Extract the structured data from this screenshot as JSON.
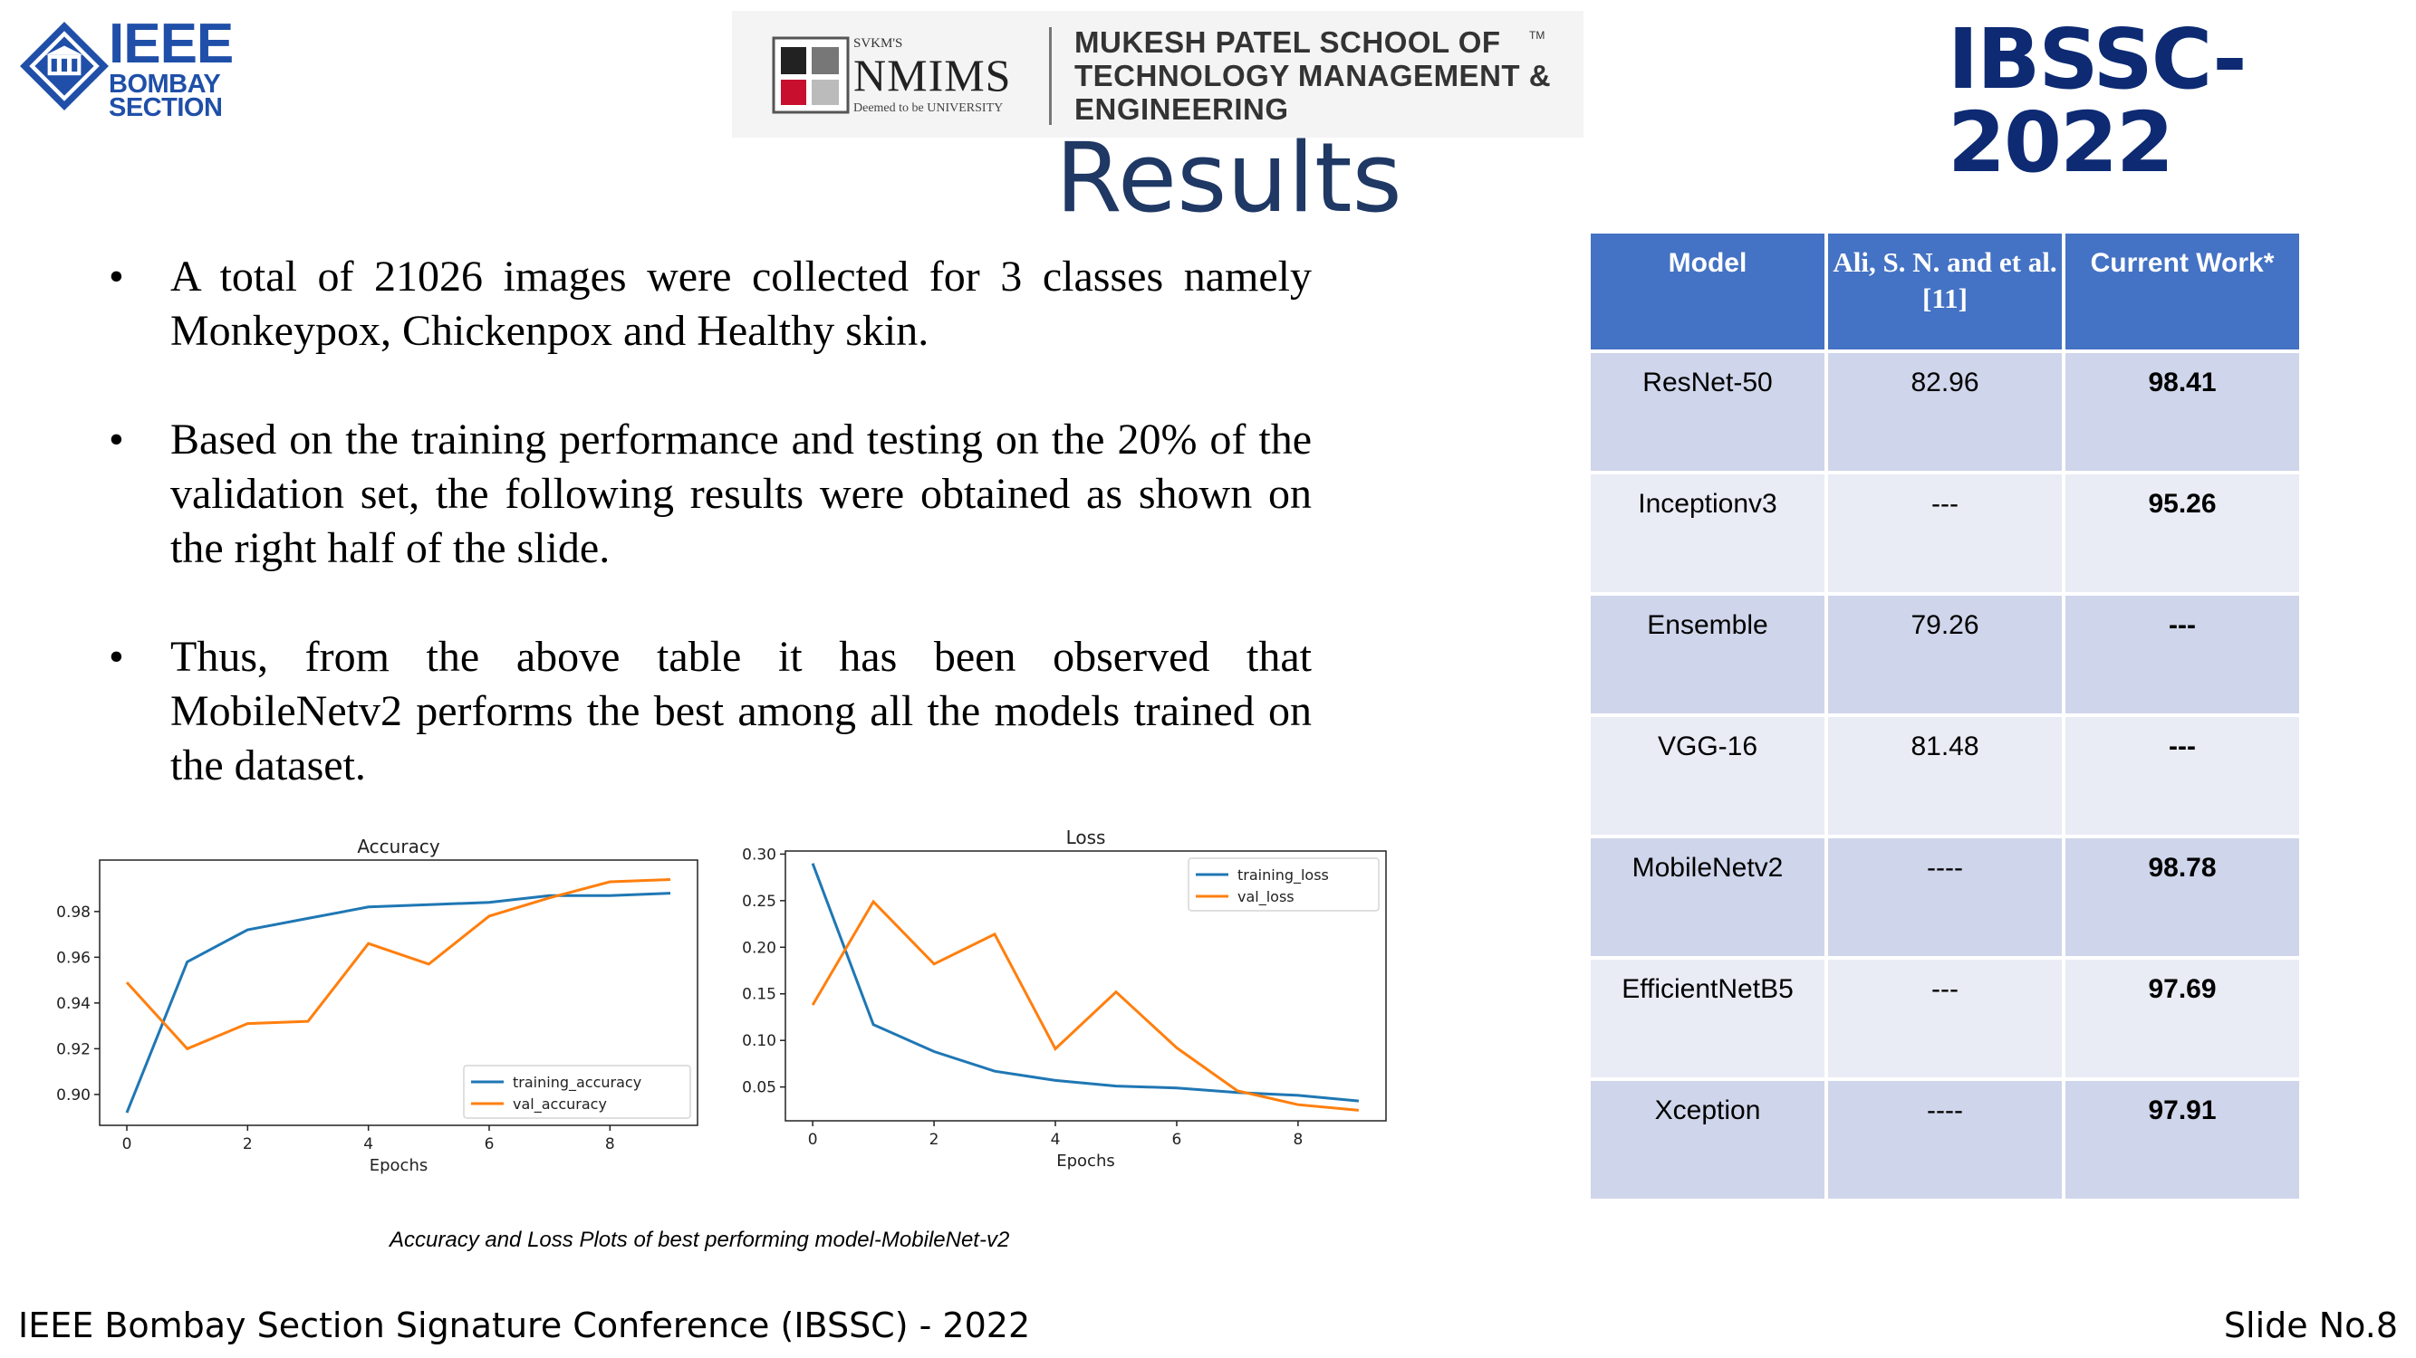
{
  "header": {
    "ieee_logo": {
      "line1": "IEEE",
      "line2": "BOMBAY",
      "line3": "SECTION"
    },
    "nmims_logo": {
      "svkms": "SVKM'S",
      "wordmark": "NMIMS",
      "deemed": "Deemed to be UNIVERSITY",
      "school_line1": "MUKESH PATEL SCHOOL OF",
      "school_line2": "TECHNOLOGY MANAGEMENT &",
      "school_line3": "ENGINEERING",
      "tm": "TM"
    },
    "conference_logo": "IBSSC-2022"
  },
  "title": "Results",
  "bullets": [
    "A total of 21026 images were collected for 3 classes namely Monkeypox, Chickenpox and Healthy skin.",
    "Based on the training performance and testing on the 20% of the validation set, the following results were obtained as shown on the right half of the slide.",
    "Thus, from the above table it has been observed that MobileNetv2 performs the best among all the models trained on the dataset."
  ],
  "bullet_symbol": "•",
  "caption": "Accuracy and Loss Plots of best performing model-MobileNet-v2",
  "chart_data": [
    {
      "type": "line",
      "title": "Accuracy",
      "xlabel": "Epochs",
      "ylabel": "",
      "x": [
        0,
        1,
        2,
        3,
        4,
        5,
        6,
        7,
        8,
        9
      ],
      "xticks": [
        "0",
        "2",
        "4",
        "6",
        "8"
      ],
      "yticks": [
        "0.90",
        "0.92",
        "0.94",
        "0.96",
        "0.98"
      ],
      "xlim": [
        -0.45,
        9.45
      ],
      "ylim": [
        0.8865,
        1.0025
      ],
      "legend_position": "lower-right",
      "grid": false,
      "series": [
        {
          "name": "training_accuracy",
          "color": "#1f77b4",
          "values": [
            0.892,
            0.958,
            0.972,
            0.977,
            0.982,
            0.983,
            0.984,
            0.987,
            0.987,
            0.988
          ]
        },
        {
          "name": "val_accuracy",
          "color": "#ff7f0e",
          "values": [
            0.949,
            0.92,
            0.931,
            0.932,
            0.966,
            0.957,
            0.978,
            0.986,
            0.993,
            0.994
          ]
        }
      ]
    },
    {
      "type": "line",
      "title": "Loss",
      "xlabel": "Epochs",
      "ylabel": "",
      "x": [
        0,
        1,
        2,
        3,
        4,
        5,
        6,
        7,
        8,
        9
      ],
      "xticks": [
        "0",
        "2",
        "4",
        "6",
        "8"
      ],
      "yticks": [
        "0.05",
        "0.10",
        "0.15",
        "0.20",
        "0.25",
        "0.30"
      ],
      "xlim": [
        -0.45,
        9.45
      ],
      "ylim": [
        0.0137,
        0.3033
      ],
      "legend_position": "upper-right",
      "grid": false,
      "series": [
        {
          "name": "training_loss",
          "color": "#1f77b4",
          "values": [
            0.29,
            0.117,
            0.088,
            0.067,
            0.057,
            0.051,
            0.049,
            0.044,
            0.041,
            0.035
          ]
        },
        {
          "name": "val_loss",
          "color": "#ff7f0e",
          "values": [
            0.138,
            0.249,
            0.182,
            0.214,
            0.091,
            0.152,
            0.092,
            0.046,
            0.031,
            0.025
          ]
        }
      ]
    }
  ],
  "table": {
    "headers": [
      "Model",
      "Ali, S. N. and et al. [11]",
      "Current Work*"
    ],
    "rows": [
      [
        "ResNet-50",
        "82.96",
        "98.41"
      ],
      [
        "Inceptionv3",
        "---",
        "95.26"
      ],
      [
        "Ensemble",
        "79.26",
        "---"
      ],
      [
        "VGG-16",
        "81.48",
        "---"
      ],
      [
        "MobileNetv2",
        "----",
        "98.78"
      ],
      [
        "EfficientNetB5",
        "---",
        "97.69"
      ],
      [
        "Xception",
        "----",
        "97.91"
      ]
    ]
  },
  "footer": "IEEE Bombay Section Signature Conference (IBSSC) - 2022",
  "slide_number": "Slide No.8",
  "colors": {
    "ieee_blue": "#1f4fa8",
    "title": "#1f3864",
    "ibssc": "#0d2a73",
    "table_header": "#4472c4",
    "table_row": "#cfd5ea",
    "table_row_alt": "#e9ebf5",
    "training": "#1f77b4",
    "validation": "#ff7f0e"
  }
}
